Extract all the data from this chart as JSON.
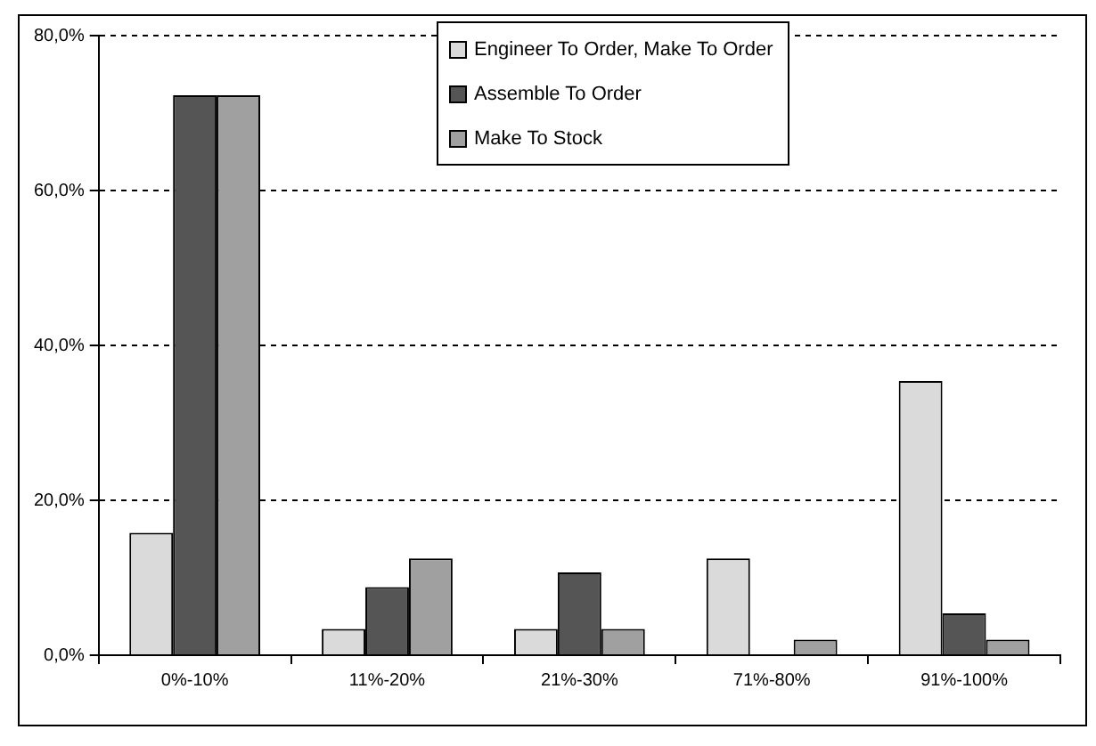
{
  "chart_data": {
    "type": "bar",
    "categories": [
      "0%-10%",
      "11%-20%",
      "21%-30%",
      "71%-80%",
      "91%-100%"
    ],
    "series": [
      {
        "name": "Engineer To Order, Make To Order",
        "color": "#dadada",
        "values": [
          15.8,
          3.4,
          3.4,
          12.5,
          35.4
        ]
      },
      {
        "name": "Assemble To Order",
        "color": "#555555",
        "values": [
          72.3,
          8.8,
          10.7,
          0,
          5.4
        ]
      },
      {
        "name": "Make To Stock",
        "color": "#a0a0a0",
        "values": [
          72.3,
          12.5,
          3.4,
          2.0,
          2.0
        ]
      }
    ],
    "ylim": [
      0,
      80
    ],
    "yticks": [
      {
        "value": 0,
        "label": "0,0%"
      },
      {
        "value": 20,
        "label": "20,0%"
      },
      {
        "value": 40,
        "label": "40,0%"
      },
      {
        "value": 60,
        "label": "60,0%"
      },
      {
        "value": 80,
        "label": "80,0%"
      }
    ],
    "grid": "y",
    "legend": "top right"
  }
}
